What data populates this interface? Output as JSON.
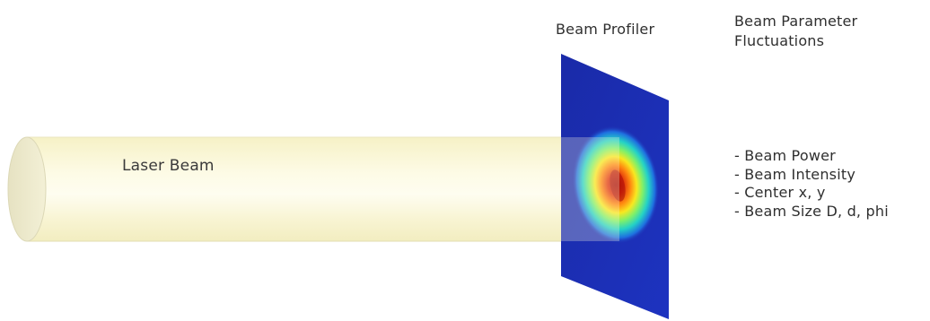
{
  "diagram": {
    "laser_label": "Laser Beam",
    "profiler_label": "Beam Profiler",
    "fluctuations_title": "Beam Parameter Fluctuations",
    "fluctuations": [
      "- Beam Power",
      "- Beam Intensity",
      "- Center x, y",
      "- Beam Size D, d, phi"
    ]
  },
  "colors": {
    "beam_fill": "#fbf8d8",
    "beam_edge": "#e8e4b8",
    "screen_background": "#1f2fb3",
    "heatmap_core": "#c81e0a",
    "heatmap_mid": "#f5e020",
    "heatmap_outer": "#2fc7c0"
  }
}
